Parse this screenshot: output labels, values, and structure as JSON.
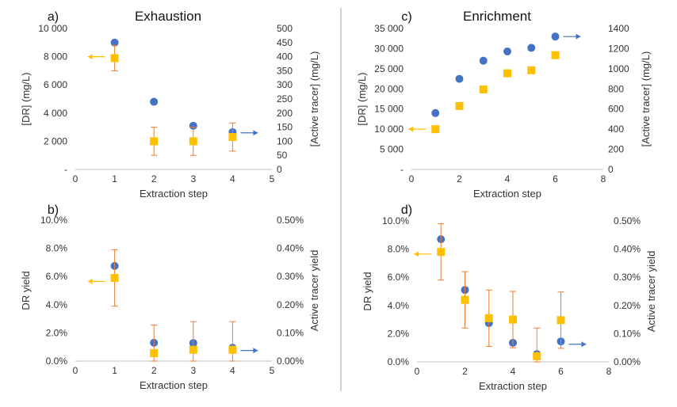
{
  "colors": {
    "dr": "#4472C4",
    "tracer": "#FFC000",
    "error_bar": "#ED7D31",
    "arrow_left": "#FFC000",
    "arrow_right": "#4472C4",
    "axis": "#bfbfbf",
    "divider": "#a6a6a6"
  },
  "chart_data": [
    {
      "panel": "a)",
      "title": "Exhaustion",
      "type": "scatter",
      "xlabel": "Extraction step",
      "ylabel": "[DR] (mg/L)",
      "y2label": "[Active tracer] (mg/L)",
      "xlim": [
        0,
        5
      ],
      "ylim": [
        0,
        10000
      ],
      "y2lim": [
        0,
        500
      ],
      "xticks": [
        "0",
        "1",
        "2",
        "3",
        "4",
        "5"
      ],
      "yticks": [
        "-",
        "2 000",
        "4 000",
        "6 000",
        "8 000",
        "10 000"
      ],
      "y2ticks": [
        "0",
        "50",
        "100",
        "150",
        "200",
        "250",
        "300",
        "350",
        "400",
        "450",
        "500"
      ],
      "grid": false,
      "series": [
        {
          "axis": "left",
          "marker": "circle",
          "color": "#4472C4",
          "points": [
            {
              "x": 1,
              "y": 9000
            },
            {
              "x": 2,
              "y": 4800
            },
            {
              "x": 3,
              "y": 3100
            },
            {
              "x": 4,
              "y": 2650
            }
          ]
        },
        {
          "axis": "right",
          "marker": "square",
          "color": "#FFC000",
          "points": [
            {
              "x": 1,
              "y": 395,
              "err": 45
            },
            {
              "x": 2,
              "y": 100,
              "err": 50
            },
            {
              "x": 3,
              "y": 100,
              "err": 50
            },
            {
              "x": 4,
              "y": 115,
              "err": 50
            }
          ]
        }
      ],
      "arrows": [
        {
          "dir": "left",
          "x": 1,
          "y": 8000,
          "axis": "left"
        },
        {
          "dir": "right",
          "x": 4,
          "y": 2600,
          "axis": "left"
        }
      ]
    },
    {
      "panel": "b)",
      "title": "",
      "type": "scatter",
      "xlabel": "Extraction step",
      "ylabel": "DR yield",
      "y2label": "Active tracer yield",
      "xlim": [
        0,
        5
      ],
      "ylim": [
        0,
        0.1
      ],
      "y2lim": [
        0,
        0.005
      ],
      "xticks": [
        "0",
        "1",
        "2",
        "3",
        "4",
        "5"
      ],
      "yticks": [
        "0.0%",
        "2.0%",
        "4.0%",
        "6.0%",
        "8.0%",
        "10.0%"
      ],
      "y2ticks": [
        "0.00%",
        "0.10%",
        "0.20%",
        "0.30%",
        "0.40%",
        "0.50%"
      ],
      "grid": false,
      "series": [
        {
          "axis": "left",
          "marker": "circle",
          "color": "#4472C4",
          "points": [
            {
              "x": 1,
              "y": 0.0675
            },
            {
              "x": 2,
              "y": 0.013
            },
            {
              "x": 3,
              "y": 0.0128
            },
            {
              "x": 4,
              "y": 0.0095
            }
          ]
        },
        {
          "axis": "right",
          "marker": "square",
          "color": "#FFC000",
          "points": [
            {
              "x": 1,
              "y": 0.00295,
              "err": 0.001
            },
            {
              "x": 2,
              "y": 0.00028,
              "err": 0.001
            },
            {
              "x": 3,
              "y": 0.0004,
              "err": 0.001
            },
            {
              "x": 4,
              "y": 0.0004,
              "err": 0.001
            }
          ]
        }
      ],
      "arrows": [
        {
          "dir": "left",
          "x": 1,
          "y": 0.0565,
          "axis": "left"
        },
        {
          "dir": "right",
          "x": 4,
          "y": 0.0075,
          "axis": "left"
        }
      ]
    },
    {
      "panel": "c)",
      "title": "Enrichment",
      "type": "scatter",
      "xlabel": "Extraction step",
      "ylabel": "[DR] (mg/L)",
      "y2label": "[Active tracer] (mg/L)",
      "xlim": [
        0,
        8
      ],
      "ylim": [
        0,
        35000
      ],
      "y2lim": [
        0,
        1400
      ],
      "xticks": [
        "0",
        "2",
        "4",
        "6",
        "8"
      ],
      "yticks": [
        "-",
        "5 000",
        "10 000",
        "15 000",
        "20 000",
        "25 000",
        "30 000",
        "35 000"
      ],
      "y2ticks": [
        "0",
        "200",
        "400",
        "600",
        "800",
        "1000",
        "1200",
        "1400"
      ],
      "grid": false,
      "series": [
        {
          "axis": "left",
          "marker": "circle",
          "color": "#4472C4",
          "points": [
            {
              "x": 1,
              "y": 14000
            },
            {
              "x": 2,
              "y": 22500
            },
            {
              "x": 3,
              "y": 27000
            },
            {
              "x": 4,
              "y": 29300
            },
            {
              "x": 5,
              "y": 30200
            },
            {
              "x": 6,
              "y": 33000
            }
          ]
        },
        {
          "axis": "right",
          "marker": "square",
          "color": "#FFC000",
          "points": [
            {
              "x": 1,
              "y": 400,
              "err": 20
            },
            {
              "x": 2,
              "y": 630,
              "err": 20
            },
            {
              "x": 3,
              "y": 795,
              "err": 20
            },
            {
              "x": 4,
              "y": 955,
              "err": 20
            },
            {
              "x": 5,
              "y": 985,
              "err": 20
            },
            {
              "x": 6,
              "y": 1135,
              "err": 20
            }
          ]
        }
      ],
      "arrows": [
        {
          "dir": "left",
          "x": 1,
          "y": 10000,
          "axis": "left"
        },
        {
          "dir": "right",
          "x": 6,
          "y": 33000,
          "axis": "left"
        }
      ]
    },
    {
      "panel": "d)",
      "title": "",
      "type": "scatter",
      "xlabel": "Extraction step",
      "ylabel": "DR yield",
      "y2label": "Active tracer yield",
      "xlim": [
        0,
        8
      ],
      "ylim": [
        0,
        0.1
      ],
      "y2lim": [
        0,
        0.005
      ],
      "xticks": [
        "0",
        "2",
        "4",
        "6",
        "8"
      ],
      "yticks": [
        "0.0%",
        "2.0%",
        "4.0%",
        "6.0%",
        "8.0%",
        "10.0%"
      ],
      "y2ticks": [
        "0.00%",
        "0.10%",
        "0.20%",
        "0.30%",
        "0.40%",
        "0.50%"
      ],
      "grid": false,
      "series": [
        {
          "axis": "left",
          "marker": "circle",
          "color": "#4472C4",
          "points": [
            {
              "x": 1,
              "y": 0.087
            },
            {
              "x": 2,
              "y": 0.051
            },
            {
              "x": 3,
              "y": 0.0275
            },
            {
              "x": 4,
              "y": 0.0135
            },
            {
              "x": 5,
              "y": 0.0055
            },
            {
              "x": 6,
              "y": 0.0145
            }
          ]
        },
        {
          "axis": "right",
          "marker": "square",
          "color": "#FFC000",
          "points": [
            {
              "x": 1,
              "y": 0.0039,
              "err": 0.001
            },
            {
              "x": 2,
              "y": 0.0022,
              "err": 0.001
            },
            {
              "x": 3,
              "y": 0.00155,
              "err": 0.001
            },
            {
              "x": 4,
              "y": 0.0015,
              "err": 0.001
            },
            {
              "x": 5,
              "y": 0.0002,
              "err": 0.001
            },
            {
              "x": 6,
              "y": 0.00148,
              "err": 0.001
            }
          ]
        }
      ],
      "arrows": [
        {
          "dir": "left",
          "x": 1,
          "y": 0.0765,
          "axis": "left"
        },
        {
          "dir": "right",
          "x": 6,
          "y": 0.0125,
          "axis": "left"
        }
      ]
    }
  ]
}
